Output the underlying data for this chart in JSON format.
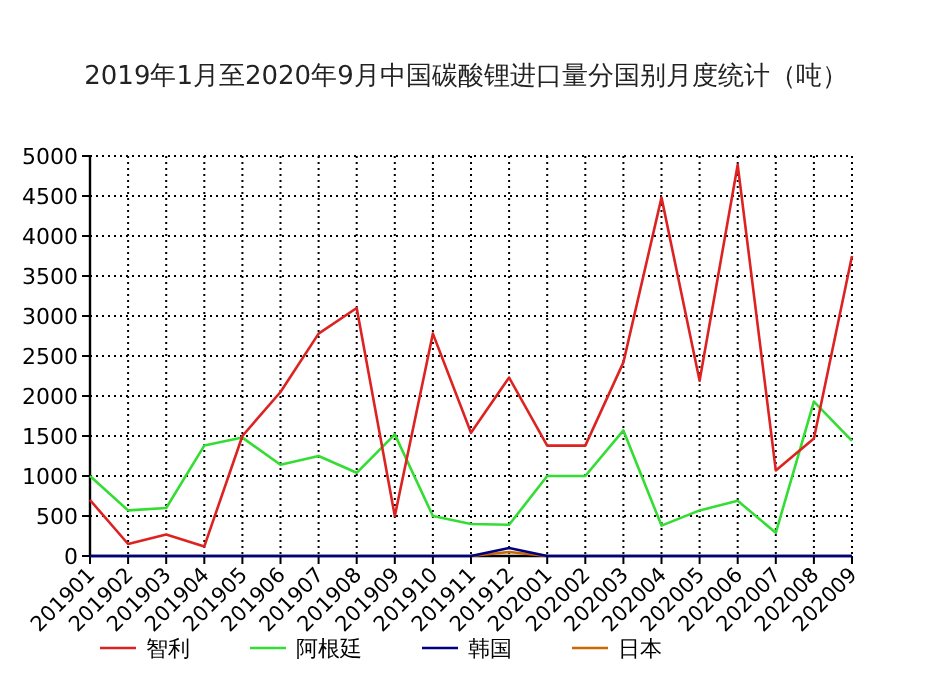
{
  "chart_data": {
    "type": "line",
    "title": "2019年1月至2020年9月中国碳酸锂进口量分国别月度统计（吨）",
    "categories": [
      "201901",
      "201902",
      "201903",
      "201904",
      "201905",
      "201906",
      "201907",
      "201908",
      "201909",
      "201910",
      "201911",
      "201912",
      "202001",
      "202002",
      "202003",
      "202004",
      "202005",
      "202006",
      "202007",
      "202008",
      "202009"
    ],
    "series": [
      {
        "name": "智利",
        "color": "#dd2222",
        "values": [
          700,
          150,
          270,
          120,
          1500,
          2050,
          2780,
          3100,
          500,
          2780,
          1540,
          2230,
          1380,
          1380,
          2420,
          4480,
          2190,
          4890,
          1070,
          1470,
          3750
        ]
      },
      {
        "name": "阿根廷",
        "color": "#33dd33",
        "values": [
          1000,
          570,
          600,
          1380,
          1480,
          1140,
          1250,
          1040,
          1520,
          500,
          400,
          390,
          1000,
          1000,
          1570,
          380,
          570,
          690,
          290,
          1930,
          1440
        ]
      },
      {
        "name": "韩国",
        "color": "#000080",
        "values": [
          0,
          0,
          0,
          0,
          0,
          0,
          0,
          0,
          0,
          0,
          0,
          100,
          0,
          0,
          0,
          0,
          0,
          0,
          0,
          0,
          0
        ]
      },
      {
        "name": "日本",
        "color": "#cc6600",
        "values": [
          null,
          null,
          null,
          null,
          null,
          null,
          null,
          null,
          null,
          null,
          0,
          50,
          0,
          null,
          null,
          null,
          null,
          null,
          null,
          null,
          null
        ]
      }
    ],
    "ylim": [
      0,
      5000
    ],
    "yticks": [
      0,
      500,
      1000,
      1500,
      2000,
      2500,
      3000,
      3500,
      4000,
      4500,
      5000
    ],
    "grid": true,
    "legend": "bottom"
  }
}
